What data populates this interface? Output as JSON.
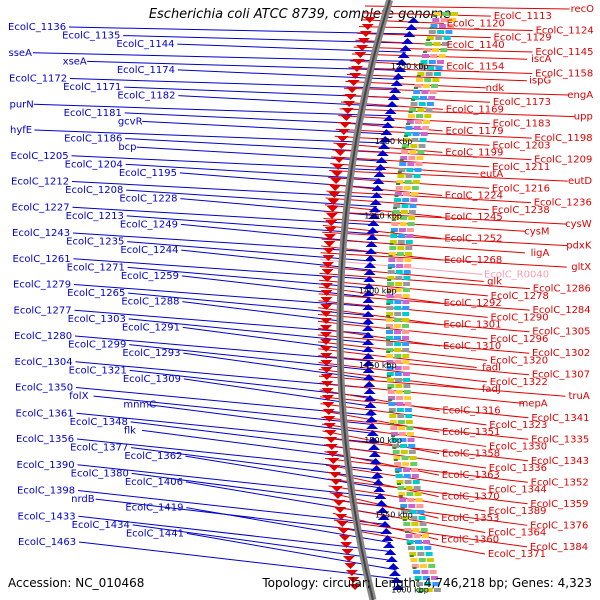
{
  "title": "Escherichia coli ATCC 8739, complete genome",
  "footer": {
    "accession_text": "Accession: NC_010468",
    "topology_text": "Topology: circular; Length: 4,746,218 bp; Genes: 4,323"
  },
  "colors": {
    "reverse_strand": "#0000cc",
    "forward_strand": "#e00000",
    "pseudo_gene": "#f4a0b4",
    "backbone_outer": "#888888",
    "backbone_inner": "#444444",
    "tick_marks": "#2e8b2e"
  },
  "ticks": [
    "1250 kbp",
    "1300 kbp",
    "1350 kbp",
    "1400 kbp",
    "1450 kbp",
    "1500 kbp",
    "1550 kbp",
    "1600 kbp"
  ],
  "left_labels": [
    "EcolC_1136",
    "EcolC_1135",
    "EcolC_1144",
    "sseA",
    "xseA",
    "EcolC_1174",
    "EcolC_1172",
    "EcolC_1171",
    "EcolC_1182",
    "purN",
    "EcolC_1181",
    "gcvR",
    "hyfE",
    "EcolC_1186",
    "bcp",
    "EcolC_1205",
    "EcolC_1204",
    "EcolC_1195",
    "EcolC_1212",
    "EcolC_1208",
    "EcolC_1228",
    "EcolC_1227",
    "EcolC_1213",
    "EcolC_1249",
    "EcolC_1243",
    "EcolC_1235",
    "EcolC_1244",
    "EcolC_1261",
    "EcolC_1271",
    "EcolC_1259",
    "EcolC_1279",
    "EcolC_1265",
    "EcolC_1288",
    "EcolC_1277",
    "EcolC_1303",
    "EcolC_1291",
    "EcolC_1280",
    "EcolC_1299",
    "EcolC_1293",
    "EcolC_1304",
    "EcolC_1321",
    "EcolC_1309",
    "EcolC_1350",
    "folX",
    "mnmC",
    "EcolC_1361",
    "EcolC_1348",
    "flk",
    "EcolC_1356",
    "EcolC_1377",
    "EcolC_1362",
    "EcolC_1390",
    "EcolC_1380",
    "EcolC_1406",
    "EcolC_1398",
    "nrdB",
    "EcolC_1419",
    "EcolC_1433",
    "EcolC_1434",
    "EcolC_1441",
    "EcolC_1463"
  ],
  "right_labels": [
    "recO",
    "EcolC_1113",
    "EcolC_1120",
    "EcolC_1124",
    "EcolC_1129",
    "EcolC_1140",
    "EcolC_1145",
    "iscA",
    "EcolC_1154",
    "EcolC_1158",
    "ispG",
    "ndk",
    "engA",
    "EcolC_1173",
    "EcolC_1169",
    "upp",
    "EcolC_1183",
    "EcolC_1179",
    "EcolC_1198",
    "EcolC_1203",
    "EcolC_1199",
    "EcolC_1209",
    "EcolC_1211",
    "eutA",
    "eutD",
    "EcolC_1216",
    "EcolC_1224",
    "EcolC_1236",
    "EcolC_1238",
    "EcolC_1245",
    "cysW",
    "cysM",
    "EcolC_1252",
    "pdxK",
    "ligA",
    "EcolC_1268",
    "gltX",
    "EcolC_R0040",
    "glk",
    "EcolC_1286",
    "EcolC_1278",
    "EcolC_1292",
    "EcolC_1284",
    "EcolC_1290",
    "EcolC_1301",
    "EcolC_1305",
    "EcolC_1296",
    "EcolC_1310",
    "EcolC_1302",
    "EcolC_1320",
    "fadI",
    "EcolC_1307",
    "EcolC_1322",
    "fadJ",
    "truA",
    "mepA",
    "EcolC_1316",
    "EcolC_1341",
    "EcolC_1323",
    "EcolC_1351",
    "EcolC_1335",
    "EcolC_1330",
    "EcolC_1358",
    "EcolC_1343",
    "EcolC_1336",
    "EcolC_1363",
    "EcolC_1352",
    "EcolC_1344",
    "EcolC_1370",
    "EcolC_1359",
    "EcolC_1389",
    "EcolC_1353",
    "EcolC_1376",
    "EcolC_1364",
    "EcolC_1360",
    "EcolC_1384",
    "EcolC_1371"
  ]
}
